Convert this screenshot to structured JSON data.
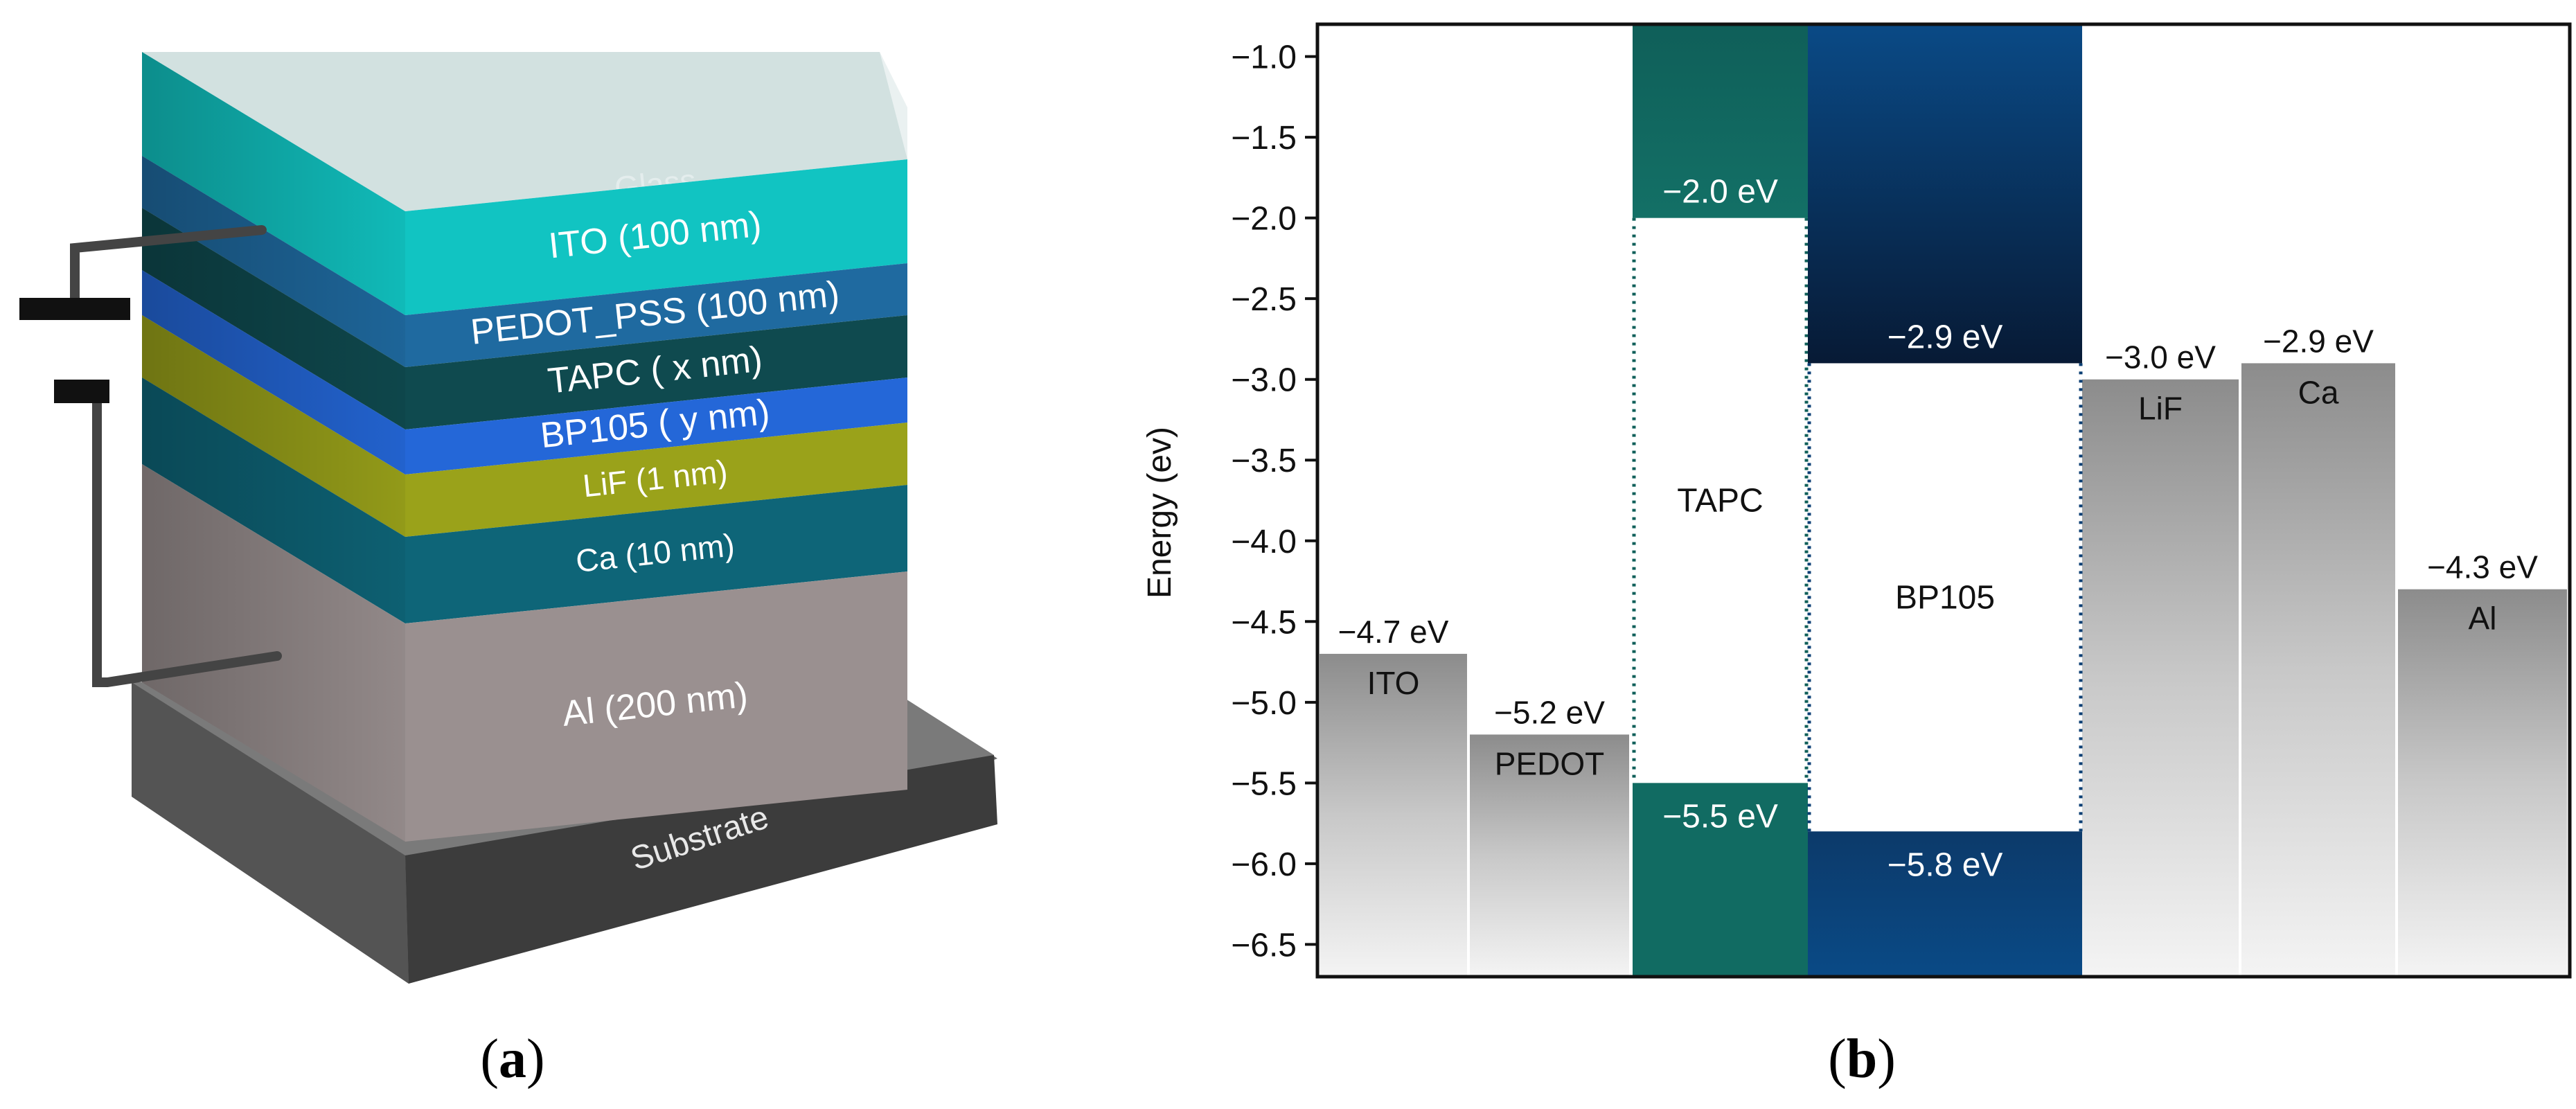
{
  "panel_a": {
    "caption_letter": "a",
    "layers": [
      {
        "label": "Glass",
        "color": "#bcd2d0"
      },
      {
        "label": "ITO (100 nm)",
        "color": "#11c4c2"
      },
      {
        "label": "PEDOT_PSS (100 nm)",
        "color": "#1f6aa0"
      },
      {
        "label": "TAPC ( x nm)",
        "color": "#0f4a4f"
      },
      {
        "label": "BP105 ( y nm)",
        "color": "#2467d8"
      },
      {
        "label": "LiF (1 nm)",
        "color": "#9aa21a"
      },
      {
        "label": "Ca (10 nm)",
        "color": "#0e6578"
      },
      {
        "label": "Al (200 nm)",
        "color": "#9a9090"
      }
    ],
    "substrate_label": "Substrate"
  },
  "panel_b": {
    "caption_letter": "b"
  },
  "chart_data": {
    "type": "bar",
    "subtype": "energy-level-diagram",
    "ylabel": "Energy (ev)",
    "ylim": [
      -6.7,
      -0.8
    ],
    "yticks": [
      -1.0,
      -1.5,
      -2.0,
      -2.5,
      -3.0,
      -3.5,
      -4.0,
      -4.5,
      -5.0,
      -5.5,
      -6.0,
      -6.5
    ],
    "ytick_labels": [
      "−1.0",
      "−1.5",
      "−2.0",
      "−2.5",
      "−3.0",
      "−3.5",
      "−4.0",
      "−4.5",
      "−5.0",
      "−5.5",
      "−6.0",
      "−6.5"
    ],
    "electrodes": [
      {
        "name": "ITO",
        "work_function": -4.7,
        "value_label": "−4.7 eV",
        "column": 0
      },
      {
        "name": "PEDOT",
        "work_function": -5.2,
        "value_label": "−5.2 eV",
        "column": 1
      },
      {
        "name": "LiF",
        "work_function": -3.0,
        "value_label": "−3.0 eV",
        "column": 4
      },
      {
        "name": "Ca",
        "work_function": -2.9,
        "value_label": "−2.9 eV",
        "column": 5
      },
      {
        "name": "Al",
        "work_function": -4.3,
        "value_label": "−4.3 eV",
        "column": 6
      }
    ],
    "organics": [
      {
        "name": "TAPC",
        "lumo": -2.0,
        "homo": -5.5,
        "lumo_label": "−2.0 eV",
        "homo_label": "−5.5 eV",
        "color": "#0f5f59",
        "column": 2
      },
      {
        "name": "BP105",
        "lumo": -2.9,
        "homo": -5.8,
        "lumo_label": "−2.9 eV",
        "homo_label": "−5.8 eV",
        "color": "#0b3f74",
        "column": 3
      }
    ]
  }
}
